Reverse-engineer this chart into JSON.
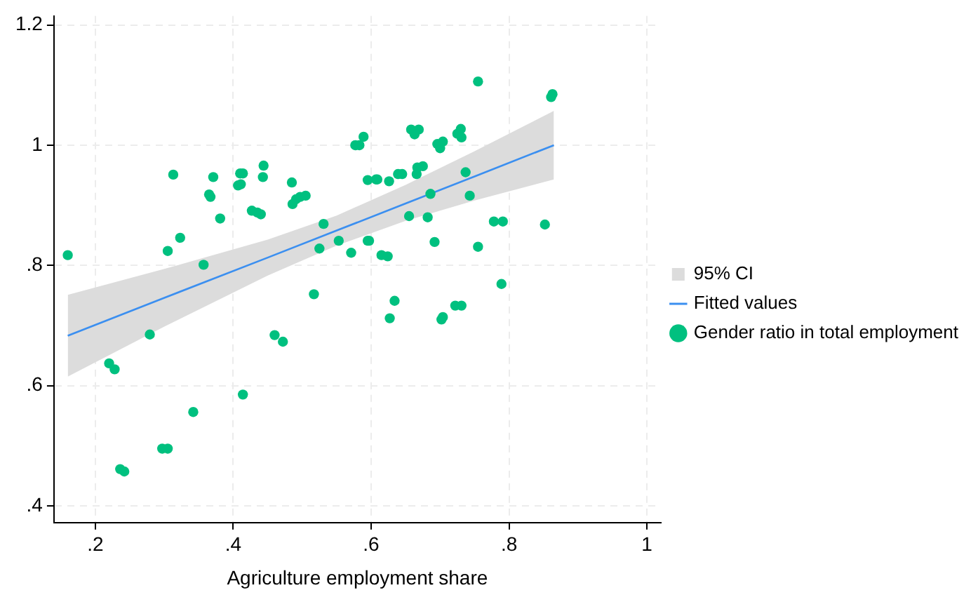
{
  "chart_data": {
    "type": "scatter",
    "xlabel": "Agriculture employment share",
    "xlim": [
      0.14,
      1.02
    ],
    "ylim": [
      0.372,
      1.215
    ],
    "xticks": [
      {
        "value": 0.2,
        "label": ".2"
      },
      {
        "value": 0.4,
        "label": ".4"
      },
      {
        "value": 0.6,
        "label": ".6"
      },
      {
        "value": 0.8,
        "label": ".8"
      },
      1
    ],
    "yticks": [
      {
        "value": 0.4,
        "label": ".4"
      },
      {
        "value": 0.6,
        "label": ".6"
      },
      {
        "value": 0.8,
        "label": ".8"
      },
      1,
      1.2
    ],
    "grid": true,
    "legend": "right",
    "series": [
      {
        "type": "area",
        "name": "95% CI",
        "color": "#dcdcdc"
      },
      {
        "type": "line",
        "line_style": "solid",
        "name": "Fitted values",
        "color": "#3b8ff0",
        "x": [
          0.16,
          0.3,
          0.45,
          0.55,
          0.65,
          0.75,
          0.865
        ],
        "values": [
          0.683,
          0.746,
          0.813,
          0.858,
          0.903,
          0.948,
          1.0
        ],
        "lower": [
          0.615,
          0.698,
          0.783,
          0.833,
          0.874,
          0.908,
          0.943
        ],
        "upper": [
          0.751,
          0.794,
          0.843,
          0.883,
          0.934,
          0.99,
          1.057
        ]
      },
      {
        "type": "scatter",
        "marker": "circle",
        "name": "Gender ratio in total employment",
        "color": "#00c07f",
        "x": [
          0.16,
          0.313,
          0.371,
          0.365,
          0.367,
          0.381,
          0.41,
          0.414,
          0.407,
          0.411,
          0.444,
          0.443,
          0.427,
          0.435,
          0.44,
          0.485,
          0.486,
          0.491,
          0.497,
          0.505,
          0.531,
          0.525,
          0.553,
          0.571,
          0.595,
          0.305,
          0.323,
          0.357,
          0.577,
          0.583,
          0.589,
          0.595,
          0.607,
          0.517,
          0.755,
          0.861,
          0.863,
          0.658,
          0.669,
          0.663,
          0.73,
          0.725,
          0.731,
          0.696,
          0.704,
          0.7,
          0.609,
          0.626,
          0.639,
          0.645,
          0.666,
          0.667,
          0.675,
          0.737,
          0.686,
          0.743,
          0.655,
          0.682,
          0.597,
          0.692,
          0.778,
          0.791,
          0.852,
          0.615,
          0.624,
          0.755,
          0.789,
          0.279,
          0.22,
          0.228,
          0.342,
          0.414,
          0.297,
          0.305,
          0.236,
          0.242,
          0.46,
          0.472,
          0.634,
          0.627,
          0.704,
          0.702,
          0.722,
          0.731
        ],
        "values": [
          0.817,
          0.951,
          0.947,
          0.918,
          0.914,
          0.878,
          0.953,
          0.953,
          0.933,
          0.935,
          0.966,
          0.947,
          0.891,
          0.888,
          0.885,
          0.938,
          0.902,
          0.91,
          0.914,
          0.916,
          0.869,
          0.828,
          0.841,
          0.821,
          0.841,
          0.824,
          0.846,
          0.801,
          1.0,
          1.0,
          1.014,
          0.942,
          0.943,
          0.752,
          1.106,
          1.08,
          1.085,
          1.026,
          1.026,
          1.018,
          1.027,
          1.019,
          1.013,
          1.002,
          1.006,
          0.995,
          0.943,
          0.94,
          0.952,
          0.952,
          0.952,
          0.963,
          0.965,
          0.955,
          0.919,
          0.916,
          0.882,
          0.88,
          0.841,
          0.839,
          0.873,
          0.873,
          0.868,
          0.817,
          0.815,
          0.831,
          0.769,
          0.685,
          0.637,
          0.627,
          0.556,
          0.585,
          0.495,
          0.495,
          0.461,
          0.457,
          0.684,
          0.673,
          0.741,
          0.712,
          0.714,
          0.71,
          0.733,
          0.733
        ]
      }
    ]
  }
}
